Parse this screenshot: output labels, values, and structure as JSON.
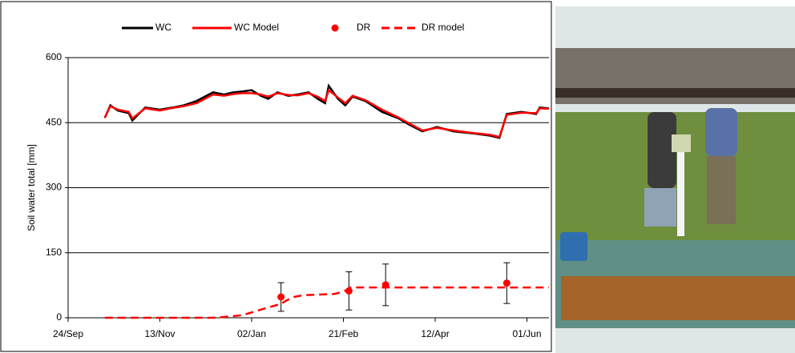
{
  "chart_data": {
    "type": "line",
    "y_label": "Soil water total [mm]",
    "xlim": [
      0,
      262
    ],
    "ylim": [
      0,
      600
    ],
    "xticks": [
      {
        "value": 0,
        "label": "24/Sep"
      },
      {
        "value": 50,
        "label": "13/Nov"
      },
      {
        "value": 100,
        "label": "02/Jan"
      },
      {
        "value": 150,
        "label": "21/Feb"
      },
      {
        "value": 200,
        "label": "12/Apr"
      },
      {
        "value": 250,
        "label": "01/Jun"
      }
    ],
    "yticks": [
      0,
      150,
      300,
      450,
      600
    ],
    "grid": true,
    "legend": "top",
    "series": [
      {
        "name": "WC",
        "color": "#000000",
        "style": "line",
        "x": [
          20,
          23,
          27,
          33,
          35,
          42,
          50,
          57,
          63,
          70,
          79,
          85,
          90,
          95,
          100,
          105,
          109,
          114,
          120,
          125,
          131,
          136,
          140,
          142,
          147,
          151,
          155,
          162,
          171,
          180,
          186,
          193,
          201,
          210,
          221,
          230,
          235,
          239,
          247,
          255,
          257,
          262
        ],
        "values": [
          461,
          490,
          478,
          472,
          455,
          485,
          480,
          485,
          490,
          500,
          520,
          515,
          520,
          522,
          525,
          512,
          505,
          520,
          512,
          515,
          520,
          505,
          495,
          535,
          505,
          490,
          510,
          500,
          475,
          460,
          445,
          430,
          440,
          430,
          425,
          420,
          415,
          470,
          475,
          470,
          485,
          483
        ]
      },
      {
        "name": "WC Model",
        "color": "#ff0000",
        "style": "line",
        "x": [
          20,
          23,
          27,
          33,
          35,
          42,
          50,
          57,
          63,
          70,
          79,
          85,
          90,
          95,
          100,
          105,
          109,
          114,
          120,
          125,
          131,
          136,
          140,
          142,
          147,
          151,
          155,
          162,
          171,
          180,
          186,
          193,
          201,
          210,
          221,
          230,
          235,
          239,
          247,
          255,
          257,
          262
        ],
        "values": [
          462,
          488,
          480,
          475,
          460,
          483,
          478,
          484,
          488,
          495,
          515,
          512,
          516,
          518,
          518,
          515,
          510,
          518,
          514,
          513,
          518,
          510,
          500,
          525,
          508,
          495,
          512,
          502,
          480,
          462,
          448,
          432,
          438,
          432,
          426,
          422,
          417,
          468,
          473,
          472,
          483,
          482
        ]
      },
      {
        "name": "DR",
        "color": "#ff0000",
        "style": "marker",
        "x": [
          116,
          153,
          173,
          239
        ],
        "values": [
          48,
          62,
          76,
          80
        ],
        "errors": [
          33,
          44,
          48,
          47
        ]
      },
      {
        "name": "DR model",
        "color": "#ff0000",
        "style": "dashed",
        "x": [
          20,
          80,
          88,
          95,
          102,
          110,
          116,
          119,
          123,
          128,
          145,
          150,
          154,
          262
        ],
        "values": [
          0,
          0,
          3,
          6,
          15,
          25,
          32,
          40,
          48,
          52,
          55,
          60,
          70,
          70
        ]
      }
    ]
  }
}
